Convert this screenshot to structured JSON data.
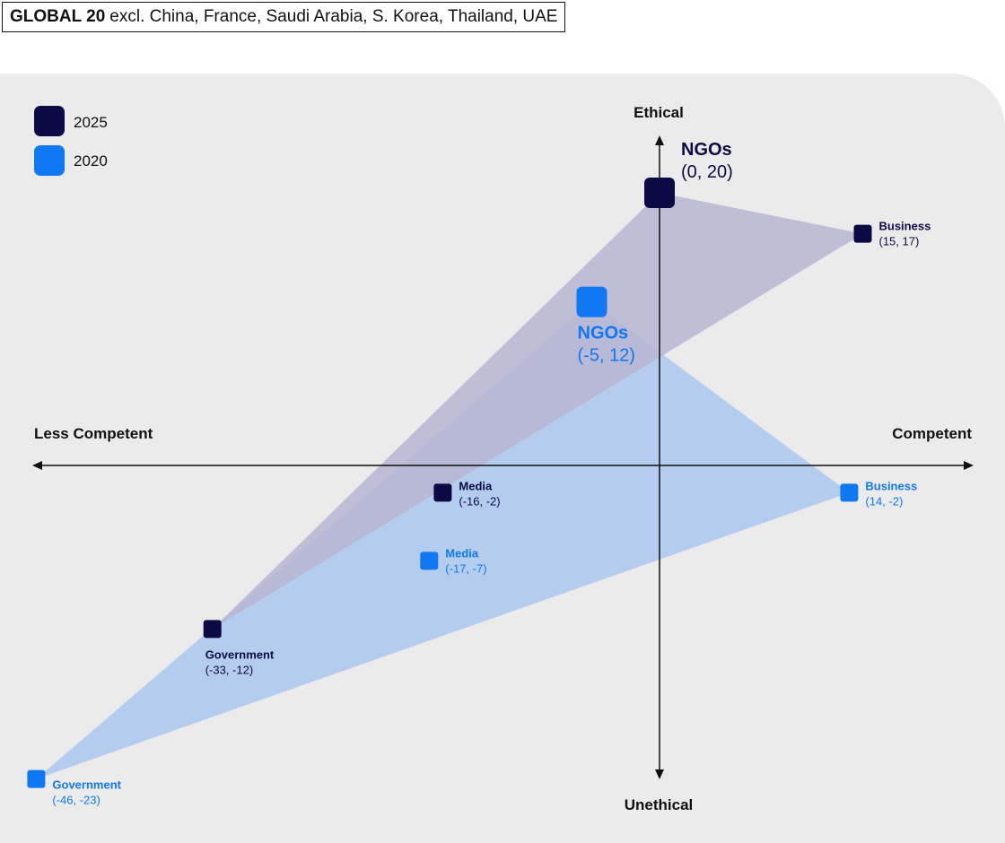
{
  "header": {
    "title_bold": "GLOBAL 20",
    "title_rest": "excl. China, France, Saudi Arabia, S. Korea, Thailand, UAE"
  },
  "colors": {
    "series_2025": "#0b0a45",
    "series_2020": "#0f78f2",
    "fill_2025": "#b8b5d2",
    "fill_2020": "#aac8f0",
    "panel": "#ebebeb"
  },
  "chart_data": {
    "type": "scatter",
    "axes": {
      "x_negative_label": "Less Competent",
      "x_positive_label": "Competent",
      "y_positive_label": "Ethical",
      "y_negative_label": "Unethical",
      "xlim": [
        -47,
        25
      ],
      "ylim": [
        -25,
        24
      ]
    },
    "grid": false,
    "legend_position": "top-left",
    "series": [
      {
        "name": "2025",
        "points": [
          {
            "label": "NGOs",
            "coords": "(0, 20)",
            "x": 0,
            "y": 20
          },
          {
            "label": "Business",
            "coords": "(15, 17)",
            "x": 15,
            "y": 17
          },
          {
            "label": "Media",
            "coords": "(-16, -2)",
            "x": -16,
            "y": -2
          },
          {
            "label": "Government",
            "coords": "(-33, -12)",
            "x": -33,
            "y": -12
          }
        ]
      },
      {
        "name": "2020",
        "points": [
          {
            "label": "NGOs",
            "coords": "(-5, 12)",
            "x": -5,
            "y": 12
          },
          {
            "label": "Business",
            "coords": "(14, -2)",
            "x": 14,
            "y": -2
          },
          {
            "label": "Media",
            "coords": "(-17, -7)",
            "x": -17,
            "y": -7
          },
          {
            "label": "Government",
            "coords": "(-46, -23)",
            "x": -46,
            "y": -23
          }
        ]
      }
    ]
  }
}
